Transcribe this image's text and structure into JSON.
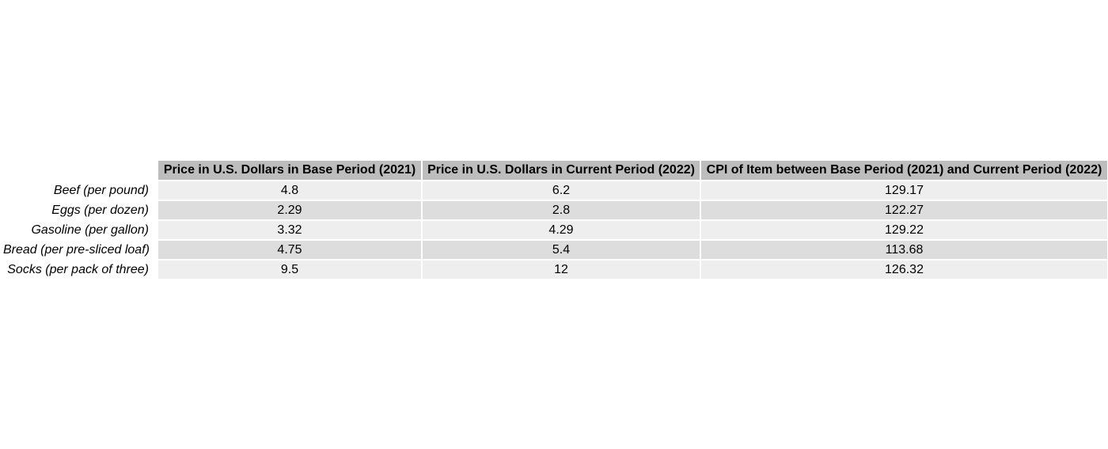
{
  "chart_data": {
    "type": "table",
    "columns": [
      "Price in U.S. Dollars in Base Period (2021)",
      "Price in U.S. Dollars in Current Period (2022)",
      "CPI of Item between Base Period (2021) and Current Period (2022)"
    ],
    "rows": [
      {
        "label": "Beef (per pound)",
        "values": [
          "4.8",
          "6.2",
          "129.17"
        ]
      },
      {
        "label": "Eggs (per dozen)",
        "values": [
          "2.29",
          "2.8",
          "122.27"
        ]
      },
      {
        "label": "Gasoline (per gallon)",
        "values": [
          "3.32",
          "4.29",
          "129.22"
        ]
      },
      {
        "label": "Bread (per pre-sliced loaf)",
        "values": [
          "4.75",
          "5.4",
          "113.68"
        ]
      },
      {
        "label": "Socks (per pack of three)",
        "values": [
          "9.5",
          "12",
          "126.32"
        ]
      }
    ],
    "colors": {
      "header_background": "#bdbdbd",
      "row_odd_background": "#eeeeee",
      "row_even_background": "#dddddd",
      "cell_border": "#ffffff"
    }
  }
}
